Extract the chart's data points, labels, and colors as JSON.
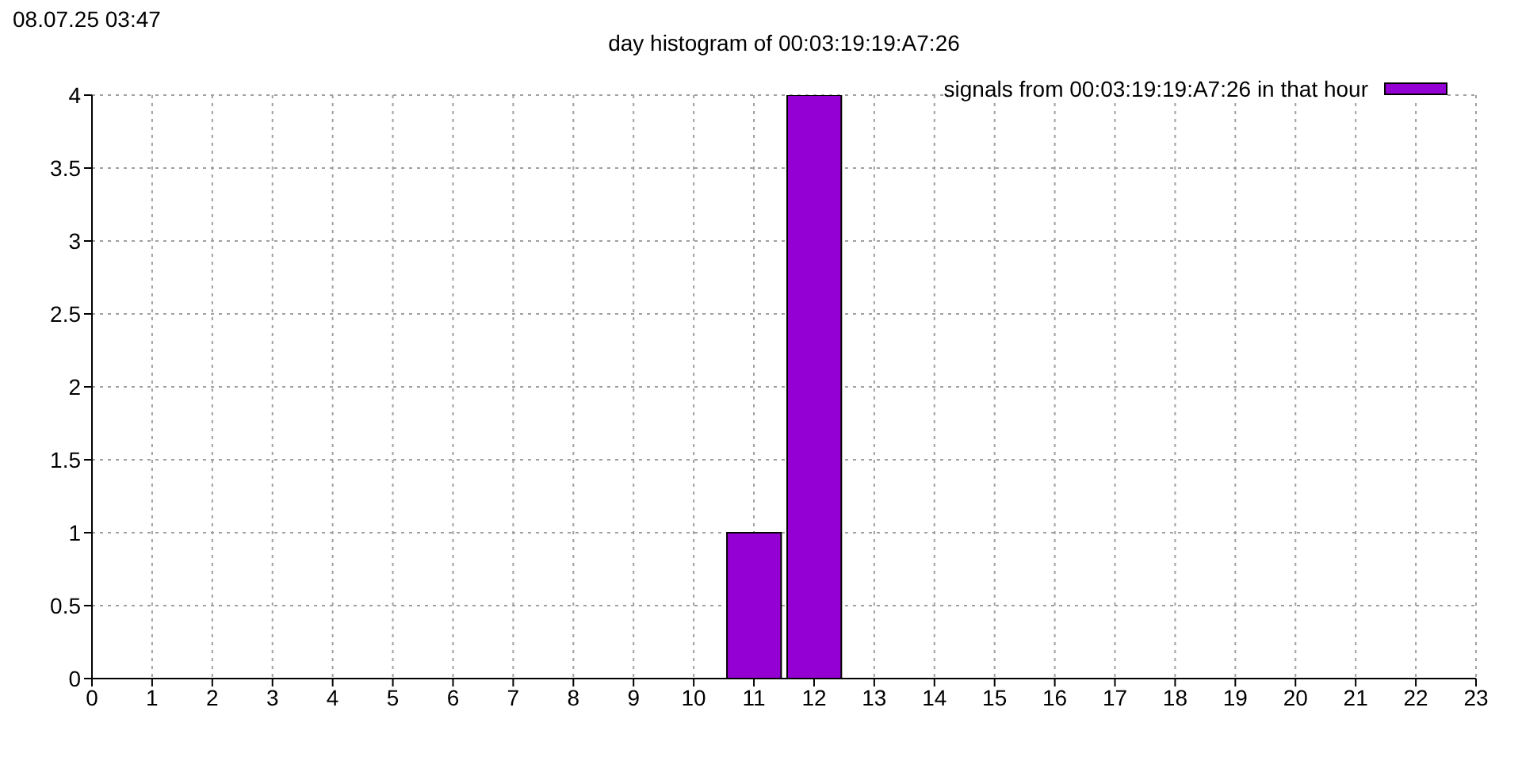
{
  "chart_data": {
    "type": "bar",
    "title": "day histogram of 00:03:19:19:A7:26",
    "annotations": [
      "08.07.25 03:47"
    ],
    "x": [
      11,
      12
    ],
    "series": [
      {
        "name": "signals from 00:03:19:19:A7:26 in that hour",
        "color": "#9400d3",
        "values": [
          1,
          4
        ]
      }
    ],
    "xlim": [
      0,
      23
    ],
    "xticks": [
      0,
      1,
      2,
      3,
      4,
      5,
      6,
      7,
      8,
      9,
      10,
      11,
      12,
      13,
      14,
      15,
      16,
      17,
      18,
      19,
      20,
      21,
      22,
      23
    ],
    "ylim": [
      0,
      4
    ],
    "yticks": [
      0,
      {
        "value": 0.5,
        "label": "0.5"
      },
      1,
      {
        "value": 1.5,
        "label": "1.5"
      },
      2,
      {
        "value": 2.5,
        "label": "2.5"
      },
      3,
      {
        "value": 3.5,
        "label": "3.5"
      },
      4
    ],
    "grid": true,
    "legend": "top right"
  }
}
